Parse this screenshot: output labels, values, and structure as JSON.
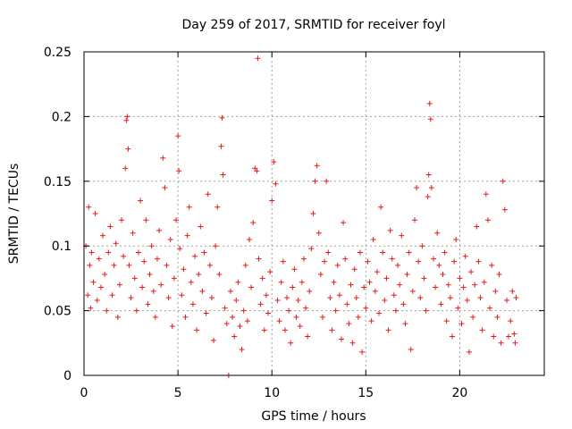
{
  "chart_data": {
    "type": "scatter",
    "title": "Day 259 of 2017, SRMTID for receiver foyl",
    "xlabel": "GPS time / hours",
    "ylabel": "SRMTID / TECUs",
    "xlim": [
      0,
      24.5
    ],
    "ylim": [
      0,
      0.25
    ],
    "xticks": [
      "0",
      "5",
      "10",
      "15",
      "20"
    ],
    "yticks": [
      "0",
      "0.05",
      "0.1",
      "0.15",
      "0.2",
      "0.25"
    ],
    "grid": true,
    "marker": "plus",
    "color": "#e41a1c",
    "series": [
      {
        "points": [
          [
            0.1,
            0.1
          ],
          [
            0.2,
            0.062
          ],
          [
            0.25,
            0.13
          ],
          [
            0.3,
            0.085
          ],
          [
            0.35,
            0.052
          ],
          [
            0.4,
            0.095
          ],
          [
            0.5,
            0.072
          ],
          [
            0.6,
            0.125
          ],
          [
            0.7,
            0.058
          ],
          [
            0.8,
            0.09
          ],
          [
            0.9,
            0.068
          ],
          [
            1.0,
            0.108
          ],
          [
            1.1,
            0.078
          ],
          [
            1.2,
            0.05
          ],
          [
            1.3,
            0.095
          ],
          [
            1.4,
            0.115
          ],
          [
            1.5,
            0.062
          ],
          [
            1.6,
            0.085
          ],
          [
            1.7,
            0.102
          ],
          [
            1.8,
            0.045
          ],
          [
            1.9,
            0.07
          ],
          [
            2.0,
            0.12
          ],
          [
            2.1,
            0.092
          ],
          [
            2.2,
            0.16
          ],
          [
            2.25,
            0.197
          ],
          [
            2.3,
            0.2
          ],
          [
            2.35,
            0.175
          ],
          [
            2.4,
            0.085
          ],
          [
            2.5,
            0.06
          ],
          [
            2.6,
            0.11
          ],
          [
            2.7,
            0.075
          ],
          [
            2.8,
            0.05
          ],
          [
            2.9,
            0.095
          ],
          [
            3.0,
            0.135
          ],
          [
            3.1,
            0.068
          ],
          [
            3.2,
            0.088
          ],
          [
            3.3,
            0.12
          ],
          [
            3.4,
            0.055
          ],
          [
            3.5,
            0.078
          ],
          [
            3.6,
            0.1
          ],
          [
            3.7,
            0.065
          ],
          [
            3.8,
            0.045
          ],
          [
            3.9,
            0.09
          ],
          [
            4.0,
            0.112
          ],
          [
            4.1,
            0.07
          ],
          [
            4.2,
            0.168
          ],
          [
            4.3,
            0.145
          ],
          [
            4.4,
            0.085
          ],
          [
            4.5,
            0.06
          ],
          [
            4.6,
            0.105
          ],
          [
            4.7,
            0.038
          ],
          [
            4.8,
            0.075
          ],
          [
            4.9,
            0.12
          ],
          [
            5.0,
            0.185
          ],
          [
            5.05,
            0.158
          ],
          [
            5.1,
            0.098
          ],
          [
            5.2,
            0.062
          ],
          [
            5.3,
            0.082
          ],
          [
            5.4,
            0.045
          ],
          [
            5.5,
            0.108
          ],
          [
            5.6,
            0.13
          ],
          [
            5.7,
            0.072
          ],
          [
            5.8,
            0.055
          ],
          [
            5.9,
            0.092
          ],
          [
            6.0,
            0.035
          ],
          [
            6.1,
            0.078
          ],
          [
            6.2,
            0.115
          ],
          [
            6.3,
            0.065
          ],
          [
            6.4,
            0.095
          ],
          [
            6.5,
            0.048
          ],
          [
            6.6,
            0.14
          ],
          [
            6.7,
            0.085
          ],
          [
            6.8,
            0.06
          ],
          [
            6.9,
            0.027
          ],
          [
            7.0,
            0.1
          ],
          [
            7.1,
            0.13
          ],
          [
            7.2,
            0.078
          ],
          [
            7.3,
            0.177
          ],
          [
            7.35,
            0.199
          ],
          [
            7.4,
            0.155
          ],
          [
            7.5,
            0.052
          ],
          [
            7.6,
            0.04
          ],
          [
            7.7,
            0.0
          ],
          [
            7.8,
            0.065
          ],
          [
            7.9,
            0.045
          ],
          [
            8.0,
            0.03
          ],
          [
            8.1,
            0.058
          ],
          [
            8.2,
            0.072
          ],
          [
            8.3,
            0.038
          ],
          [
            8.4,
            0.02
          ],
          [
            8.5,
            0.05
          ],
          [
            8.6,
            0.085
          ],
          [
            8.7,
            0.042
          ],
          [
            8.8,
            0.105
          ],
          [
            8.9,
            0.068
          ],
          [
            9.0,
            0.118
          ],
          [
            9.1,
            0.16
          ],
          [
            9.2,
            0.158
          ],
          [
            9.25,
            0.245
          ],
          [
            9.3,
            0.09
          ],
          [
            9.4,
            0.055
          ],
          [
            9.5,
            0.075
          ],
          [
            9.6,
            0.035
          ],
          [
            9.7,
            0.062
          ],
          [
            9.8,
            0.048
          ],
          [
            9.9,
            0.08
          ],
          [
            10.0,
            0.135
          ],
          [
            10.1,
            0.165
          ],
          [
            10.2,
            0.148
          ],
          [
            10.3,
            0.058
          ],
          [
            10.4,
            0.042
          ],
          [
            10.5,
            0.072
          ],
          [
            10.6,
            0.088
          ],
          [
            10.7,
            0.035
          ],
          [
            10.8,
            0.06
          ],
          [
            10.9,
            0.05
          ],
          [
            11.0,
            0.025
          ],
          [
            11.1,
            0.068
          ],
          [
            11.2,
            0.082
          ],
          [
            11.3,
            0.045
          ],
          [
            11.4,
            0.058
          ],
          [
            11.5,
            0.038
          ],
          [
            11.6,
            0.072
          ],
          [
            11.7,
            0.09
          ],
          [
            11.8,
            0.052
          ],
          [
            11.9,
            0.03
          ],
          [
            12.0,
            0.065
          ],
          [
            12.1,
            0.098
          ],
          [
            12.2,
            0.125
          ],
          [
            12.3,
            0.15
          ],
          [
            12.4,
            0.162
          ],
          [
            12.5,
            0.11
          ],
          [
            12.6,
            0.078
          ],
          [
            12.7,
            0.045
          ],
          [
            12.8,
            0.088
          ],
          [
            12.9,
            0.15
          ],
          [
            13.0,
            0.095
          ],
          [
            13.1,
            0.06
          ],
          [
            13.2,
            0.035
          ],
          [
            13.3,
            0.072
          ],
          [
            13.4,
            0.05
          ],
          [
            13.5,
            0.085
          ],
          [
            13.6,
            0.062
          ],
          [
            13.7,
            0.028
          ],
          [
            13.8,
            0.118
          ],
          [
            13.9,
            0.09
          ],
          [
            14.0,
            0.055
          ],
          [
            14.1,
            0.04
          ],
          [
            14.2,
            0.07
          ],
          [
            14.3,
            0.025
          ],
          [
            14.4,
            0.082
          ],
          [
            14.5,
            0.06
          ],
          [
            14.6,
            0.045
          ],
          [
            14.7,
            0.095
          ],
          [
            14.8,
            0.018
          ],
          [
            14.9,
            0.068
          ],
          [
            15.0,
            0.052
          ],
          [
            15.1,
            0.088
          ],
          [
            15.2,
            0.072
          ],
          [
            15.3,
            0.042
          ],
          [
            15.4,
            0.105
          ],
          [
            15.5,
            0.065
          ],
          [
            15.6,
            0.08
          ],
          [
            15.7,
            0.048
          ],
          [
            15.8,
            0.13
          ],
          [
            15.9,
            0.095
          ],
          [
            16.0,
            0.058
          ],
          [
            16.1,
            0.075
          ],
          [
            16.2,
            0.035
          ],
          [
            16.3,
            0.112
          ],
          [
            16.4,
            0.09
          ],
          [
            16.5,
            0.062
          ],
          [
            16.6,
            0.05
          ],
          [
            16.7,
            0.085
          ],
          [
            16.8,
            0.07
          ],
          [
            16.9,
            0.108
          ],
          [
            17.0,
            0.055
          ],
          [
            17.1,
            0.04
          ],
          [
            17.2,
            0.078
          ],
          [
            17.3,
            0.095
          ],
          [
            17.4,
            0.02
          ],
          [
            17.5,
            0.065
          ],
          [
            17.6,
            0.12
          ],
          [
            17.7,
            0.145
          ],
          [
            17.8,
            0.088
          ],
          [
            17.9,
            0.06
          ],
          [
            18.0,
            0.1
          ],
          [
            18.1,
            0.075
          ],
          [
            18.2,
            0.05
          ],
          [
            18.3,
            0.138
          ],
          [
            18.35,
            0.155
          ],
          [
            18.4,
            0.21
          ],
          [
            18.45,
            0.198
          ],
          [
            18.5,
            0.145
          ],
          [
            18.6,
            0.09
          ],
          [
            18.7,
            0.068
          ],
          [
            18.8,
            0.11
          ],
          [
            18.9,
            0.085
          ],
          [
            19.0,
            0.055
          ],
          [
            19.1,
            0.078
          ],
          [
            19.2,
            0.095
          ],
          [
            19.3,
            0.042
          ],
          [
            19.4,
            0.07
          ],
          [
            19.5,
            0.06
          ],
          [
            19.6,
            0.03
          ],
          [
            19.7,
            0.088
          ],
          [
            19.8,
            0.105
          ],
          [
            19.9,
            0.052
          ],
          [
            20.0,
            0.075
          ],
          [
            20.1,
            0.04
          ],
          [
            20.2,
            0.068
          ],
          [
            20.3,
            0.092
          ],
          [
            20.4,
            0.058
          ],
          [
            20.5,
            0.018
          ],
          [
            20.6,
            0.08
          ],
          [
            20.7,
            0.045
          ],
          [
            20.8,
            0.07
          ],
          [
            20.9,
            0.115
          ],
          [
            21.0,
            0.088
          ],
          [
            21.1,
            0.06
          ],
          [
            21.2,
            0.035
          ],
          [
            21.3,
            0.072
          ],
          [
            21.4,
            0.14
          ],
          [
            21.5,
            0.12
          ],
          [
            21.6,
            0.052
          ],
          [
            21.7,
            0.085
          ],
          [
            21.8,
            0.03
          ],
          [
            21.9,
            0.065
          ],
          [
            22.0,
            0.045
          ],
          [
            22.1,
            0.078
          ],
          [
            22.2,
            0.025
          ],
          [
            22.3,
            0.15
          ],
          [
            22.4,
            0.128
          ],
          [
            22.5,
            0.058
          ],
          [
            22.6,
            0.03
          ],
          [
            22.7,
            0.042
          ],
          [
            22.8,
            0.065
          ],
          [
            22.9,
            0.032
          ],
          [
            22.95,
            0.025
          ],
          [
            23.0,
            0.06
          ]
        ]
      }
    ]
  }
}
